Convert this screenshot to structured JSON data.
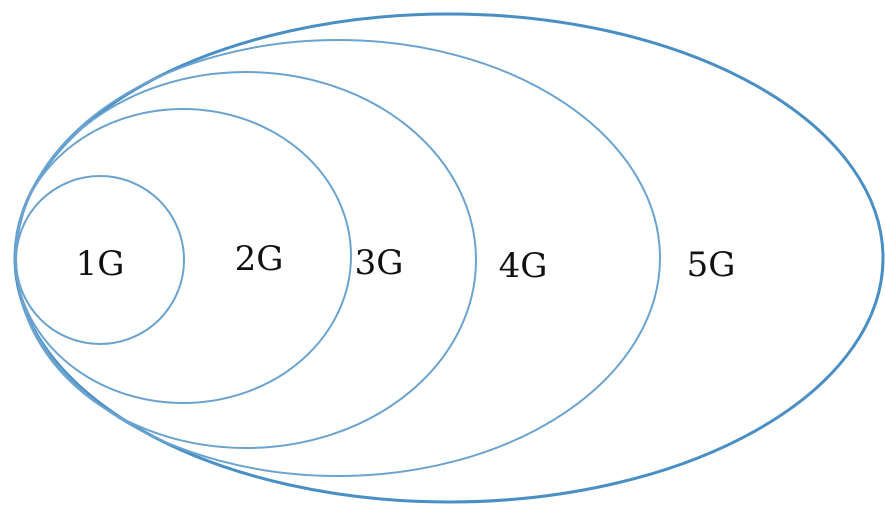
{
  "diagram": {
    "stroke_color": "#6aa3cf",
    "outer_stroke_color": "#4a8fc4",
    "generations": [
      {
        "label": "1G"
      },
      {
        "label": "2G"
      },
      {
        "label": "3G"
      },
      {
        "label": "4G"
      },
      {
        "label": "5G"
      }
    ]
  }
}
